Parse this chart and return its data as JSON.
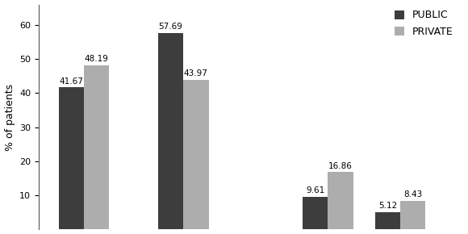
{
  "public_values": [
    41.67,
    57.69,
    9.61,
    5.12
  ],
  "private_values": [
    48.19,
    43.97,
    16.86,
    8.43
  ],
  "public_color": "#3d3d3d",
  "private_color": "#adadad",
  "ylabel": "% of patients",
  "ylim": [
    0,
    66
  ],
  "yticks": [
    10,
    20,
    30,
    40,
    50,
    60
  ],
  "legend_labels": [
    "PUBLIC",
    "PRIVATE"
  ],
  "bar_width": 0.28,
  "group_positions": [
    0.5,
    1.6,
    3.2,
    4.0
  ],
  "value_fontsize": 7.5,
  "ylabel_fontsize": 9,
  "legend_fontsize": 9,
  "tick_fontsize": 8,
  "background_color": "#ffffff"
}
